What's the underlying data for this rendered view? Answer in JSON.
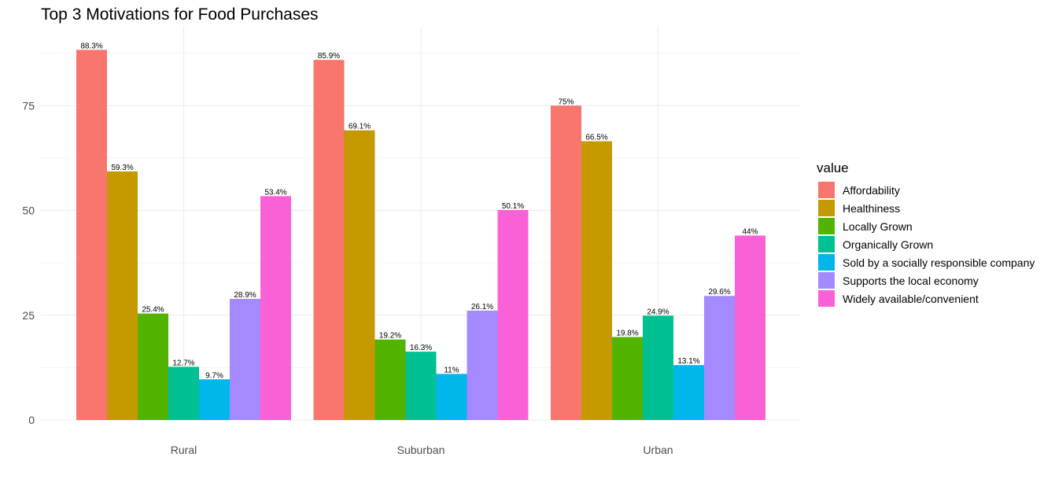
{
  "chart_data": {
    "type": "bar",
    "title": "Top 3 Motivations for Food Purchases",
    "xlabel": "",
    "ylabel": "",
    "categories": [
      "Rural",
      "Suburban",
      "Urban"
    ],
    "ylim": [
      0,
      90
    ],
    "yticks": [
      0,
      25,
      50,
      75
    ],
    "grid": true,
    "legend_title": "value",
    "legend_position": "right",
    "series": [
      {
        "name": "Affordability",
        "color": "#F8766D",
        "values": [
          88.3,
          85.9,
          75
        ],
        "labels": [
          "88.3%",
          "85.9%",
          "75%"
        ]
      },
      {
        "name": "Healthiness",
        "color": "#C49A00",
        "values": [
          59.3,
          69.1,
          66.5
        ],
        "labels": [
          "59.3%",
          "69.1%",
          "66.5%"
        ]
      },
      {
        "name": "Locally Grown",
        "color": "#53B400",
        "values": [
          25.4,
          19.2,
          19.8
        ],
        "labels": [
          "25.4%",
          "19.2%",
          "19.8%"
        ]
      },
      {
        "name": "Organically Grown",
        "color": "#00C094",
        "values": [
          12.7,
          16.3,
          24.9
        ],
        "labels": [
          "12.7%",
          "16.3%",
          "24.9%"
        ]
      },
      {
        "name": "Sold by a socially responsible company",
        "color": "#00B6EB",
        "values": [
          9.7,
          11,
          13.1
        ],
        "labels": [
          "9.7%",
          "11%",
          "13.1%"
        ]
      },
      {
        "name": "Supports the local economy",
        "color": "#A58AFF",
        "values": [
          28.9,
          26.1,
          29.6
        ],
        "labels": [
          "28.9%",
          "26.1%",
          "29.6%"
        ]
      },
      {
        "name": "Widely available/convenient",
        "color": "#FB61D7",
        "values": [
          53.4,
          50.1,
          44
        ],
        "labels": [
          "53.4%",
          "50.1%",
          "44%"
        ]
      }
    ]
  }
}
